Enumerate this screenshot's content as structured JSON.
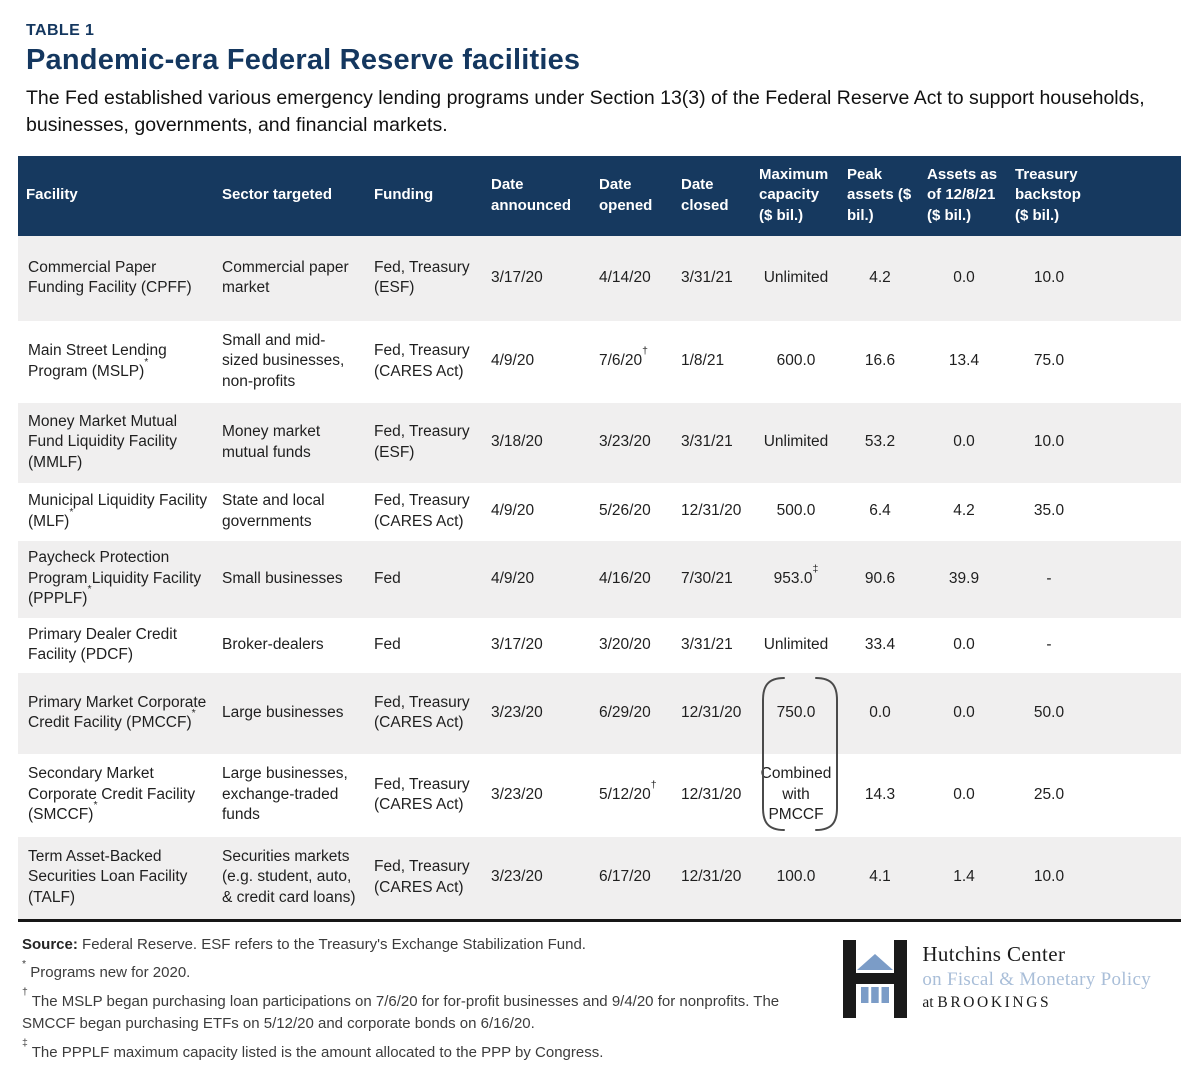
{
  "meta": {
    "eyebrow": "TABLE 1",
    "title": "Pandemic-era Federal Reserve facilities",
    "subtitle": "The Fed established various emergency lending programs under Section 13(3) of the Federal Reserve Act to support households, businesses, governments, and financial markets."
  },
  "colors": {
    "header_bg": "#16395f",
    "title_navy": "#14375f",
    "row_alt": "#f0efef",
    "logo_blue": "#7b9cc7",
    "logo_light_text": "#a9bed8"
  },
  "table": {
    "columns": [
      "Facility",
      "Sector targeted",
      "Funding",
      "Date announced",
      "Date opened",
      "Date closed",
      "Maximum capacity ($ bil.)",
      "Peak assets ($ bil.)",
      "Assets as of 12/8/21 ($ bil.)",
      "Treasury backstop ($ bil.)"
    ],
    "rows": [
      {
        "cells": [
          {
            "t": "Commercial Paper Funding Facility (CPFF)"
          },
          {
            "t": "Commercial paper market"
          },
          {
            "t": "Fed, Treasury (ESF)"
          },
          {
            "t": "3/17/20"
          },
          {
            "t": "4/14/20"
          },
          {
            "t": "3/31/21"
          },
          {
            "t": "Unlimited"
          },
          {
            "t": "4.2"
          },
          {
            "t": "0.0"
          },
          {
            "t": "10.0"
          }
        ]
      },
      {
        "cells": [
          {
            "t": "Main Street Lending Program (MSLP)",
            "s": "*"
          },
          {
            "t": "Small and mid-sized businesses, non-profits"
          },
          {
            "t": "Fed, Treasury (CARES Act)"
          },
          {
            "t": "4/9/20"
          },
          {
            "t": "7/6/20",
            "s": "†"
          },
          {
            "t": "1/8/21"
          },
          {
            "t": "600.0"
          },
          {
            "t": "16.6"
          },
          {
            "t": "13.4"
          },
          {
            "t": "75.0"
          }
        ]
      },
      {
        "cells": [
          {
            "t": "Money Market Mutual Fund Liquidity Facility (MMLF)"
          },
          {
            "t": "Money market mutual funds"
          },
          {
            "t": "Fed, Treasury (ESF)"
          },
          {
            "t": "3/18/20"
          },
          {
            "t": "3/23/20"
          },
          {
            "t": "3/31/21"
          },
          {
            "t": "Unlimited"
          },
          {
            "t": "53.2"
          },
          {
            "t": "0.0"
          },
          {
            "t": "10.0"
          }
        ]
      },
      {
        "cells": [
          {
            "t": "Municipal Liquidity Facility (MLF)",
            "s": "*"
          },
          {
            "t": "State and local governments"
          },
          {
            "t": "Fed, Treasury (CARES Act)"
          },
          {
            "t": "4/9/20"
          },
          {
            "t": "5/26/20"
          },
          {
            "t": "12/31/20"
          },
          {
            "t": "500.0"
          },
          {
            "t": "6.4"
          },
          {
            "t": "4.2"
          },
          {
            "t": "35.0"
          }
        ]
      },
      {
        "cells": [
          {
            "t": "Paycheck Protection Program Liquidity Facility (PPPLF)",
            "s": "*"
          },
          {
            "t": "Small businesses"
          },
          {
            "t": "Fed"
          },
          {
            "t": "4/9/20"
          },
          {
            "t": "4/16/20"
          },
          {
            "t": "7/30/21"
          },
          {
            "t": "953.0",
            "s": "‡"
          },
          {
            "t": "90.6"
          },
          {
            "t": "39.9"
          },
          {
            "t": "-"
          }
        ]
      },
      {
        "cells": [
          {
            "t": "Primary Dealer Credit Facility (PDCF)"
          },
          {
            "t": "Broker-dealers"
          },
          {
            "t": "Fed"
          },
          {
            "t": "3/17/20"
          },
          {
            "t": "3/20/20"
          },
          {
            "t": "3/31/21"
          },
          {
            "t": "Unlimited"
          },
          {
            "t": "33.4"
          },
          {
            "t": "0.0"
          },
          {
            "t": "-"
          }
        ]
      },
      {
        "cells": [
          {
            "t": "Primary Market Corporate Credit Facility (PMCCF)",
            "s": "*"
          },
          {
            "t": "Large businesses"
          },
          {
            "t": "Fed, Treasury (CARES Act)"
          },
          {
            "t": "3/23/20"
          },
          {
            "t": "6/29/20"
          },
          {
            "t": "12/31/20"
          },
          {
            "t": "750.0"
          },
          {
            "t": "0.0"
          },
          {
            "t": "0.0"
          },
          {
            "t": "50.0"
          }
        ]
      },
      {
        "cells": [
          {
            "t": "Secondary Market Corporate Credit Facility (SMCCF)",
            "s": "*"
          },
          {
            "t": "Large businesses, exchange-traded funds"
          },
          {
            "t": "Fed, Treasury (CARES Act)"
          },
          {
            "t": "3/23/20"
          },
          {
            "t": "5/12/20",
            "s": "†"
          },
          {
            "t": "12/31/20"
          },
          {
            "t": "Combined with PMCCF"
          },
          {
            "t": "14.3"
          },
          {
            "t": "0.0"
          },
          {
            "t": "25.0"
          }
        ]
      },
      {
        "cells": [
          {
            "t": "Term Asset-Backed Securities Loan Facility (TALF)"
          },
          {
            "t": "Securities markets (e.g. student, auto, & credit card loans)"
          },
          {
            "t": "Fed, Treasury (CARES Act)"
          },
          {
            "t": "3/23/20"
          },
          {
            "t": "6/17/20"
          },
          {
            "t": "12/31/20"
          },
          {
            "t": "100.0"
          },
          {
            "t": "4.1"
          },
          {
            "t": "1.4"
          },
          {
            "t": "10.0"
          }
        ]
      }
    ],
    "bracket_meaning": "PMCCF and SMCCF maximum capacity combined"
  },
  "notes": [
    {
      "bold": "Source:",
      "text": " Federal Reserve. ESF refers to the Treasury's Exchange Stabilization Fund."
    },
    {
      "sup": "*",
      "text": " Programs new for 2020."
    },
    {
      "sup": "†",
      "text": " The MSLP began purchasing loan participations on 7/6/20 for for-profit businesses and 9/4/20 for nonprofits. The SMCCF began purchasing ETFs on 5/12/20 and corporate bonds on 6/16/20."
    },
    {
      "sup": "‡",
      "text": " The PPPLF maximum capacity listed is the amount allocated to the PPP by Congress."
    }
  ],
  "logo": {
    "name": "Hutchins Center",
    "subtitle": "on Fiscal & Monetary Policy",
    "at_prefix": "at ",
    "brand": "BROOKINGS"
  }
}
